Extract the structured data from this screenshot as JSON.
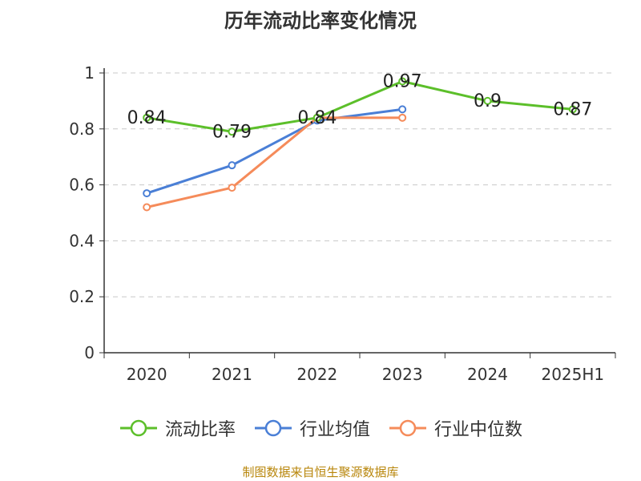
{
  "chart_data": {
    "type": "line",
    "title": "历年流动比率变化情况",
    "categories": [
      "2020",
      "2021",
      "2022",
      "2023",
      "2024",
      "2025H1"
    ],
    "ylim": [
      0,
      1
    ],
    "yticks": [
      "0",
      "0.2",
      "0.4",
      "0.6",
      "0.8",
      "1"
    ],
    "grid": true,
    "legend_position": "bottom",
    "series": [
      {
        "name": "流动比率",
        "color": "#5cbf2a",
        "values": [
          0.84,
          0.79,
          0.84,
          0.97,
          0.9,
          0.87
        ],
        "labels": [
          "0.84",
          "0.79",
          "0.84",
          "0.97",
          "0.9",
          "0.87"
        ]
      },
      {
        "name": "行业均值",
        "color": "#4a7fd6",
        "values": [
          0.57,
          0.67,
          0.83,
          0.87,
          null,
          null
        ]
      },
      {
        "name": "行业中位数",
        "color": "#f58b5a",
        "values": [
          0.52,
          0.59,
          0.84,
          0.84,
          null,
          null
        ]
      }
    ]
  },
  "source": "制图数据来自恒生聚源数据库"
}
